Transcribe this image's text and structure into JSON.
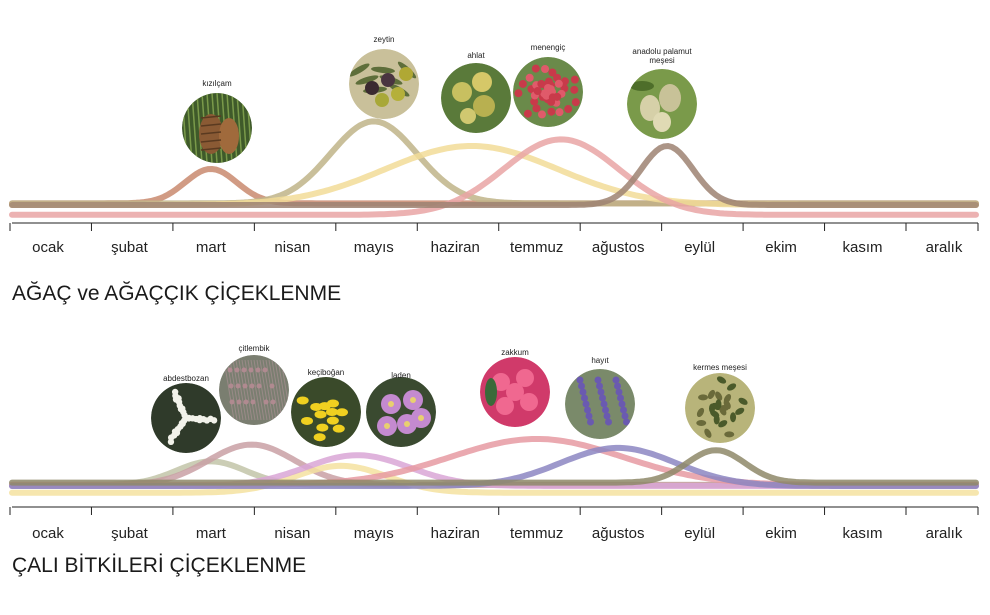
{
  "months": [
    "ocak",
    "şubat",
    "mart",
    "nisan",
    "mayıs",
    "haziran",
    "temmuz",
    "ağustos",
    "eylül",
    "ekim",
    "kasım",
    "aralık"
  ],
  "chart_data": [
    {
      "type": "line",
      "title": "AĞAÇ ve AĞAÇÇIK ÇİÇEKLENME",
      "x": [
        1,
        2,
        3,
        4,
        5,
        6,
        7,
        8,
        9,
        10,
        11,
        12
      ],
      "categories": [
        "ocak",
        "şubat",
        "mart",
        "nisan",
        "mayıs",
        "haziran",
        "temmuz",
        "ağustos",
        "eylül",
        "ekim",
        "kasım",
        "aralık"
      ],
      "ylim": [
        0,
        1
      ],
      "grid": false,
      "series": [
        {
          "name": "kızılçam",
          "color": "#c98a6e",
          "baseline": 0.02,
          "peak_month": 3.0,
          "peak": 0.42,
          "width": 0.45,
          "image": "pine-cone-photo"
        },
        {
          "name": "zeytin",
          "color": "#bfb488",
          "baseline": 0.02,
          "peak_month": 5.0,
          "peak": 1.0,
          "width": 0.75,
          "image": "olive-photo"
        },
        {
          "name": "ahlat",
          "color": "#f2dc98",
          "baseline": 0.0,
          "peak_month": 6.2,
          "peak": 0.72,
          "width": 1.5,
          "image": "wild-pear-photo"
        },
        {
          "name": "menengiç",
          "color": "#e9a4a4",
          "baseline": -0.12,
          "peak_month": 7.3,
          "peak": 0.92,
          "width": 1.0,
          "image": "terebinth-photo"
        },
        {
          "name": "anadolu palamut meşesi",
          "color": "#9e8272",
          "baseline": 0.0,
          "peak_month": 8.6,
          "peak": 0.72,
          "width": 0.45,
          "image": "oak-acorn-photo"
        }
      ]
    },
    {
      "type": "line",
      "title": "ÇALI BİTKİLERİ ÇİÇEKLENME",
      "x": [
        1,
        2,
        3,
        4,
        5,
        6,
        7,
        8,
        9,
        10,
        11,
        12
      ],
      "categories": [
        "ocak",
        "şubat",
        "mart",
        "nisan",
        "mayıs",
        "haziran",
        "temmuz",
        "ağustos",
        "eylül",
        "ekim",
        "kasım",
        "aralık"
      ],
      "ylim": [
        0,
        1
      ],
      "grid": false,
      "series": [
        {
          "name": "abdestbozan",
          "color": "#c2c4a8",
          "baseline": 0.02,
          "peak_month": 3.0,
          "peak": 0.42,
          "width": 0.6,
          "image": "yarrow-photo"
        },
        {
          "name": "çitlembik",
          "color": "#c9a0a4",
          "baseline": 0.02,
          "peak_month": 3.5,
          "peak": 0.72,
          "width": 0.75,
          "image": "hackberry-photo"
        },
        {
          "name": "keçiboğan",
          "color": "#f5e2a0",
          "baseline": -0.12,
          "peak_month": 4.6,
          "peak": 0.48,
          "width": 0.8,
          "image": "broom-photo"
        },
        {
          "name": "laden",
          "color": "#d9a6d6",
          "baseline": 0.0,
          "peak_month": 4.8,
          "peak": 0.55,
          "width": 0.9,
          "image": "rockrose-photo"
        },
        {
          "name": "zakkum",
          "color": "#e69aa2",
          "baseline": 0.02,
          "peak_month": 7.0,
          "peak": 0.82,
          "width": 1.5,
          "image": "oleander-photo"
        },
        {
          "name": "hayıt",
          "color": "#8c86c2",
          "baseline": 0.0,
          "peak_month": 8.0,
          "peak": 0.68,
          "width": 1.0,
          "image": "chaste-tree-photo"
        },
        {
          "name": "kermes meşesi",
          "color": "#8e8868",
          "baseline": 0.06,
          "peak_month": 9.2,
          "peak": 0.58,
          "width": 0.5,
          "image": "kermes-oak-photo"
        }
      ]
    }
  ]
}
